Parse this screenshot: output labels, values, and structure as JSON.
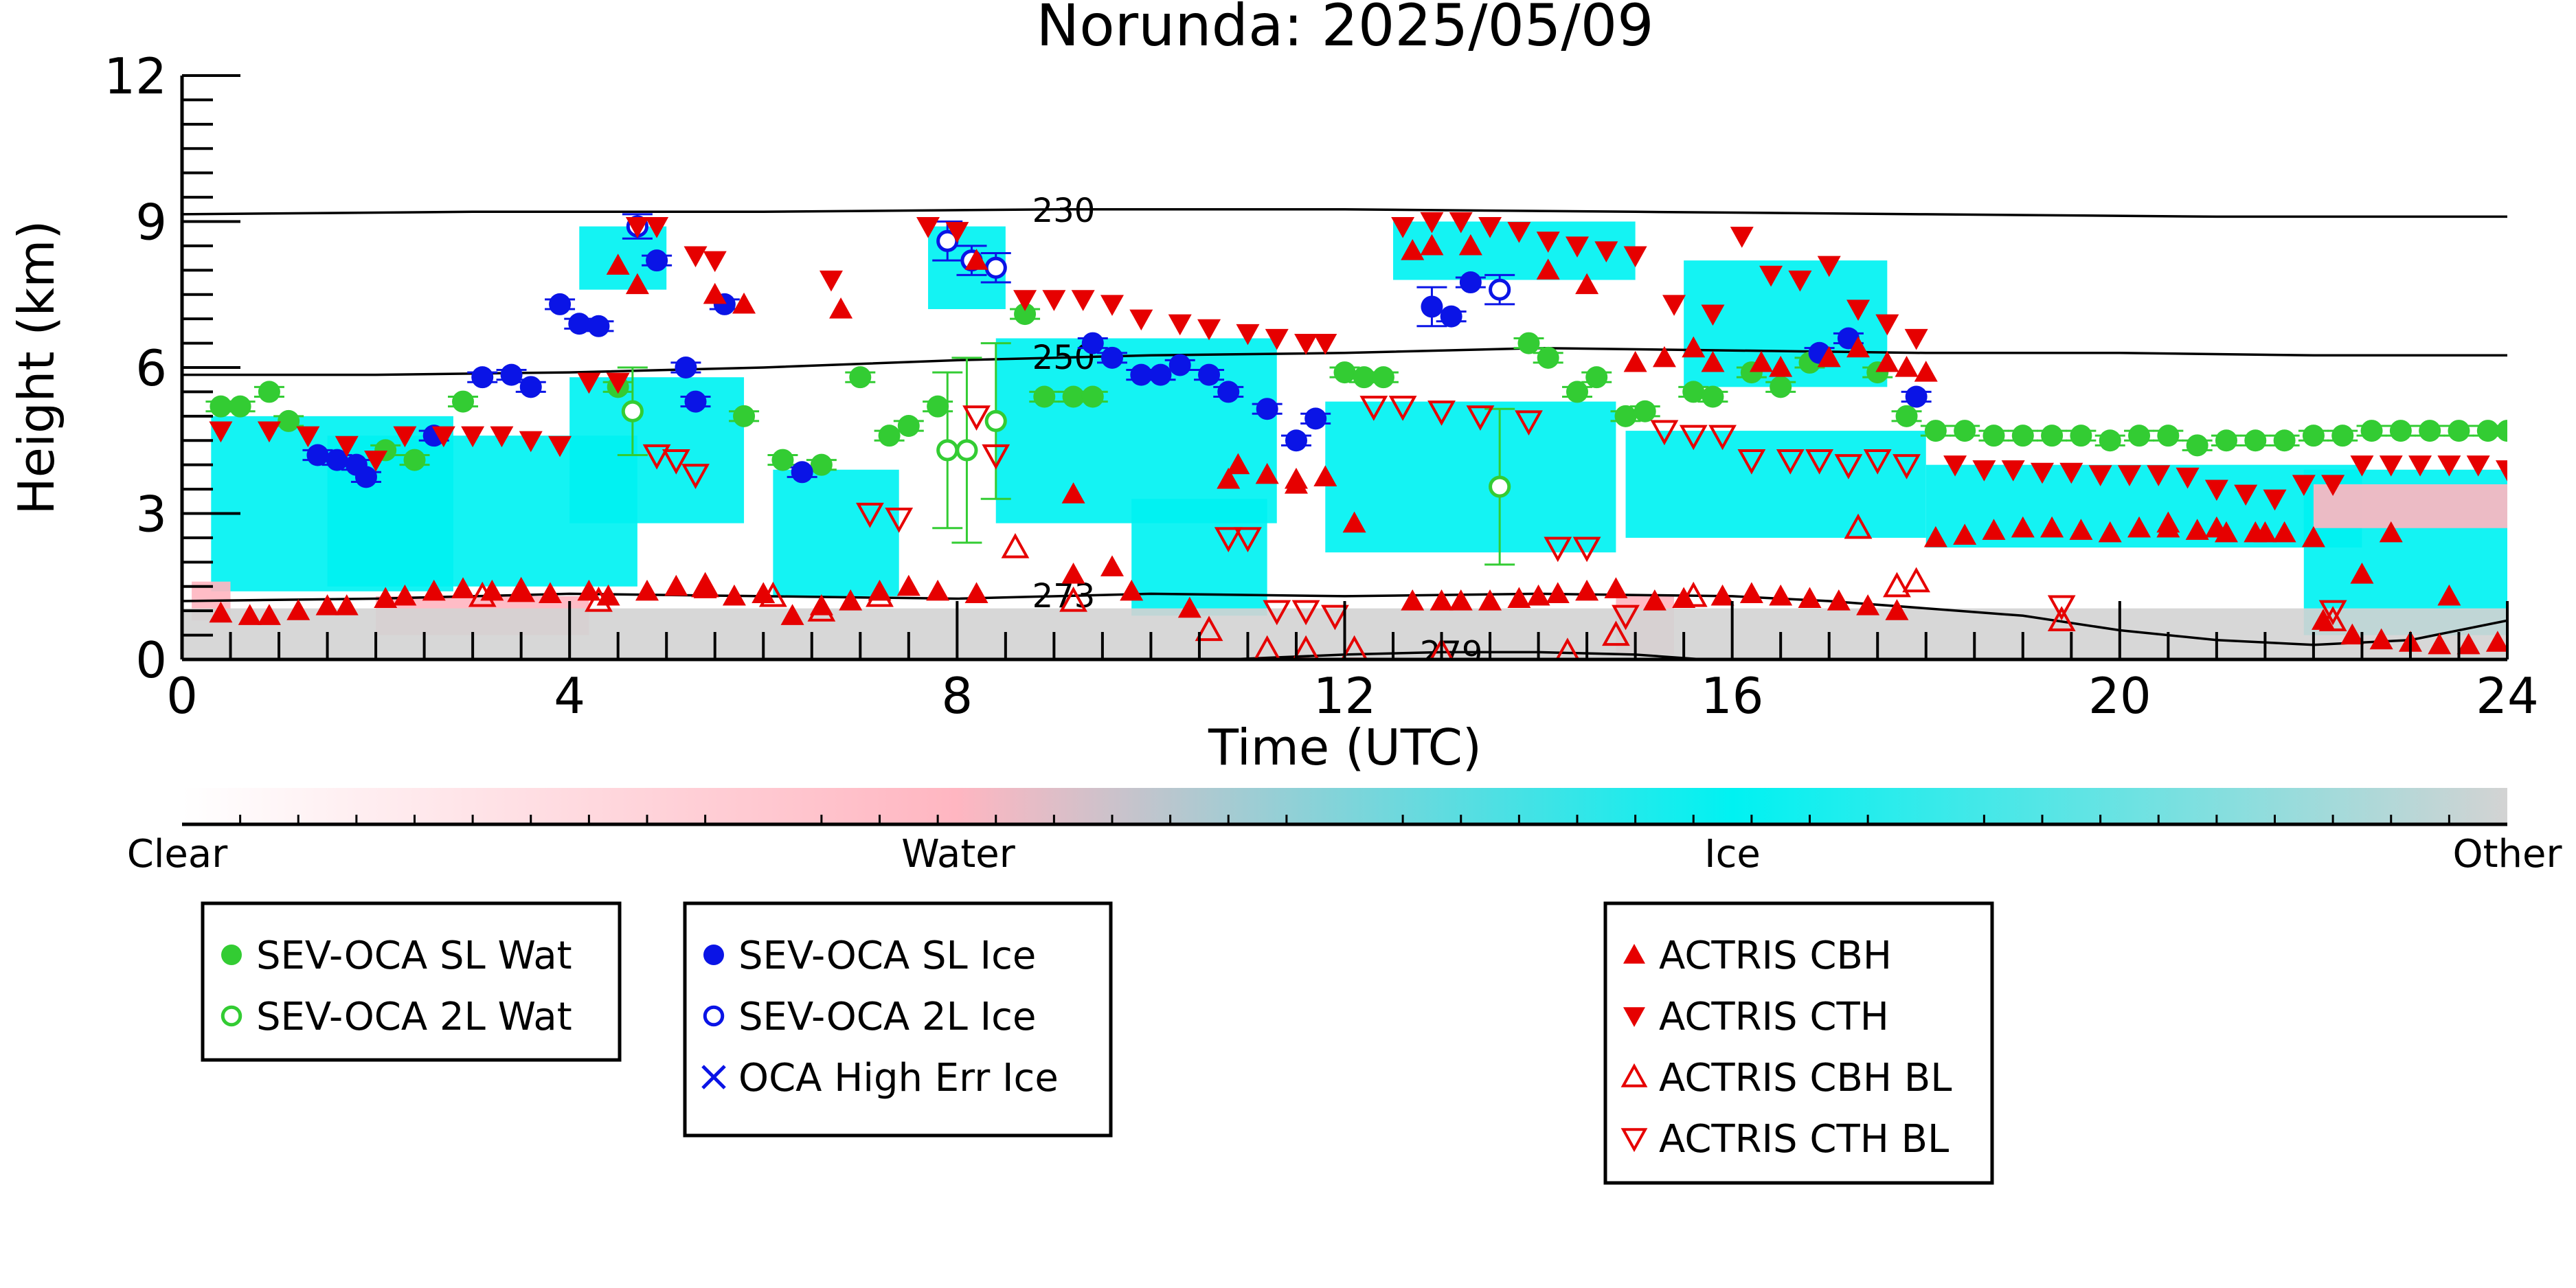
{
  "chart_data": {
    "type": "scatter",
    "title": "Norunda: 2025/05/09",
    "xlabel": "Time (UTC)",
    "ylabel": "Height (km)",
    "xlim": [
      0,
      24
    ],
    "ylim": [
      0,
      12
    ],
    "xticks": [
      0,
      4,
      8,
      12,
      16,
      20,
      24
    ],
    "yticks": [
      0,
      3,
      6,
      9,
      12
    ],
    "grid": false,
    "colors": {
      "water_green": "#33cc33",
      "ice_blue": "#0a14e6",
      "actris_red": "#e60000",
      "ice_cyan": "#00f2f2",
      "water_pink": "#ffb6c1",
      "other_gray": "#d3d3d3"
    },
    "colorbar": {
      "labels": [
        "Clear",
        "Water",
        "Ice",
        "Other"
      ],
      "stops": [
        "#ffffff",
        "#ffb6c1",
        "#00f2f2",
        "#d3d3d3"
      ]
    },
    "isotherms": [
      {
        "label": "230",
        "x": [
          0,
          3,
          6,
          9,
          12,
          15,
          18,
          21,
          24
        ],
        "y": [
          9.15,
          9.2,
          9.2,
          9.25,
          9.25,
          9.2,
          9.15,
          9.1,
          9.1
        ]
      },
      {
        "label": "250",
        "x": [
          0,
          2,
          4,
          6,
          8,
          10,
          12,
          14,
          16,
          18,
          20,
          22,
          24
        ],
        "y": [
          5.85,
          5.85,
          5.9,
          6.0,
          6.15,
          6.25,
          6.3,
          6.4,
          6.35,
          6.3,
          6.3,
          6.25,
          6.25
        ]
      },
      {
        "label": "273",
        "x": [
          0,
          2,
          4,
          6,
          8,
          10,
          12,
          14,
          16,
          17,
          18,
          19,
          20,
          21,
          22,
          23,
          24
        ],
        "y": [
          1.2,
          1.25,
          1.35,
          1.3,
          1.25,
          1.35,
          1.3,
          1.35,
          1.3,
          1.2,
          1.05,
          0.9,
          0.6,
          0.4,
          0.3,
          0.4,
          0.8
        ]
      },
      {
        "label": "279",
        "x": [
          10.8,
          12.0,
          13.0,
          14.0,
          15.0,
          15.7
        ],
        "y": [
          0.0,
          0.1,
          0.15,
          0.15,
          0.1,
          0.0
        ]
      }
    ],
    "regions": [
      {
        "kind": "ice",
        "x0": 0.3,
        "x1": 2.8,
        "y0": 1.4,
        "y1": 5.0
      },
      {
        "kind": "ice",
        "x0": 1.5,
        "x1": 4.7,
        "y0": 1.5,
        "y1": 4.6
      },
      {
        "kind": "ice",
        "x0": 4.0,
        "x1": 5.8,
        "y0": 2.8,
        "y1": 5.8
      },
      {
        "kind": "ice",
        "x0": 4.1,
        "x1": 5.0,
        "y0": 7.6,
        "y1": 8.9
      },
      {
        "kind": "ice",
        "x0": 6.1,
        "x1": 7.4,
        "y0": 1.3,
        "y1": 3.9
      },
      {
        "kind": "ice",
        "x0": 7.7,
        "x1": 8.5,
        "y0": 7.2,
        "y1": 8.9
      },
      {
        "kind": "ice",
        "x0": 8.4,
        "x1": 11.3,
        "y0": 2.8,
        "y1": 6.6
      },
      {
        "kind": "ice",
        "x0": 9.8,
        "x1": 11.2,
        "y0": 0.9,
        "y1": 3.3
      },
      {
        "kind": "ice",
        "x0": 11.8,
        "x1": 14.8,
        "y0": 2.2,
        "y1": 5.3
      },
      {
        "kind": "ice",
        "x0": 12.5,
        "x1": 15.0,
        "y0": 7.8,
        "y1": 9.0
      },
      {
        "kind": "ice",
        "x0": 14.9,
        "x1": 18.0,
        "y0": 2.5,
        "y1": 4.7
      },
      {
        "kind": "ice",
        "x0": 15.5,
        "x1": 17.6,
        "y0": 5.6,
        "y1": 8.2
      },
      {
        "kind": "ice",
        "x0": 18.0,
        "x1": 22.5,
        "y0": 2.3,
        "y1": 4.0
      },
      {
        "kind": "ice",
        "x0": 21.9,
        "x1": 24.0,
        "y0": 0.5,
        "y1": 3.9
      },
      {
        "kind": "water",
        "x0": 0.1,
        "x1": 0.5,
        "y0": 0.8,
        "y1": 1.6
      },
      {
        "kind": "water",
        "x0": 2.0,
        "x1": 4.2,
        "y0": 0.5,
        "y1": 1.3
      },
      {
        "kind": "water",
        "x0": 14.8,
        "x1": 15.4,
        "y0": 0.1,
        "y1": 1.3
      },
      {
        "kind": "water",
        "x0": 22.0,
        "x1": 24.0,
        "y0": 2.7,
        "y1": 3.6
      },
      {
        "kind": "other",
        "x0": 0.0,
        "x1": 24.0,
        "y0": 0.0,
        "y1": 1.05
      }
    ],
    "series": [
      {
        "name": "SEV-OCA SL Wat",
        "marker": "circle-filled",
        "color": "#33cc33",
        "x": [
          0.4,
          0.6,
          0.9,
          1.1,
          2.1,
          2.4,
          2.9,
          4.5,
          5.8,
          6.2,
          6.6,
          7.0,
          7.3,
          7.5,
          7.8,
          8.7,
          8.9,
          9.2,
          9.4,
          12.0,
          12.2,
          12.4,
          13.9,
          14.1,
          14.4,
          14.6,
          14.9,
          15.1,
          15.6,
          15.8,
          16.2,
          16.5,
          16.8,
          17.5,
          17.8,
          18.1,
          18.4,
          18.7,
          19.0,
          19.3,
          19.6,
          19.9,
          20.2,
          20.5,
          20.8,
          21.1,
          21.4,
          21.7,
          22.0,
          22.3,
          22.6,
          22.9,
          23.2,
          23.5,
          23.8,
          24.0
        ],
        "y": [
          5.2,
          5.2,
          5.5,
          4.9,
          4.3,
          4.1,
          5.3,
          5.6,
          5.0,
          4.1,
          4.0,
          5.8,
          4.6,
          4.8,
          5.2,
          7.1,
          5.4,
          5.4,
          5.4,
          5.9,
          5.8,
          5.8,
          6.5,
          6.2,
          5.5,
          5.8,
          5.0,
          5.1,
          5.5,
          5.4,
          5.9,
          5.6,
          6.1,
          5.9,
          5.0,
          4.7,
          4.7,
          4.6,
          4.6,
          4.6,
          4.6,
          4.5,
          4.6,
          4.6,
          4.4,
          4.5,
          4.5,
          4.5,
          4.6,
          4.6,
          4.7,
          4.7,
          4.7,
          4.7,
          4.7,
          4.7
        ],
        "yerr": [
          0.1,
          0.1,
          0.1,
          0.1,
          0.1,
          0.1,
          0.1,
          0.1,
          0.1,
          0.1,
          0.1,
          0.1,
          0.1,
          0.1,
          0.1,
          0.1,
          0.1,
          0.1,
          0.1,
          0.1,
          0.1,
          0.1,
          0.1,
          0.1,
          0.1,
          0.1,
          0.1,
          0.1,
          0.1,
          0.1,
          0.1,
          0.1,
          0.1,
          0.1,
          0.1,
          0.1,
          0.1,
          0.1,
          0.1,
          0.1,
          0.1,
          0.1,
          0.1,
          0.1,
          0.1,
          0.1,
          0.1,
          0.1,
          0.1,
          0.1,
          0.1,
          0.1,
          0.1,
          0.1,
          0.1,
          0.1
        ]
      },
      {
        "name": "SEV-OCA 2L Wat",
        "marker": "circle-open",
        "color": "#33cc33",
        "x": [
          4.65,
          7.9,
          8.1,
          8.4,
          13.6
        ],
        "y": [
          5.1,
          4.3,
          4.3,
          4.9,
          3.55
        ],
        "yerr": [
          0.9,
          1.6,
          1.9,
          1.6,
          1.6
        ]
      },
      {
        "name": "SEV-OCA SL Ice",
        "marker": "circle-filled",
        "color": "#0a14e6",
        "x": [
          1.4,
          1.6,
          1.8,
          1.9,
          2.6,
          3.1,
          3.4,
          3.6,
          3.9,
          4.1,
          4.3,
          4.9,
          5.2,
          5.3,
          5.6,
          6.4,
          9.4,
          9.6,
          9.9,
          10.1,
          10.3,
          10.6,
          10.8,
          11.2,
          11.5,
          11.7,
          12.9,
          13.1,
          13.3,
          16.9,
          17.2,
          17.9
        ],
        "y": [
          4.2,
          4.1,
          4.0,
          3.75,
          4.6,
          5.8,
          5.85,
          5.6,
          7.3,
          6.9,
          6.85,
          8.2,
          6.0,
          5.3,
          7.3,
          3.85,
          6.5,
          6.2,
          5.85,
          5.85,
          6.05,
          5.85,
          5.5,
          5.15,
          4.5,
          4.95,
          7.25,
          7.05,
          7.75,
          6.3,
          6.6,
          5.4
        ],
        "yerr": [
          0.1,
          0.1,
          0.1,
          0.1,
          0.1,
          0.1,
          0.1,
          0.1,
          0.1,
          0.1,
          0.1,
          0.1,
          0.1,
          0.1,
          0.1,
          0.1,
          0.1,
          0.1,
          0.1,
          0.1,
          0.1,
          0.1,
          0.1,
          0.1,
          0.1,
          0.1,
          0.4,
          0.1,
          0.1,
          0.1,
          0.1,
          0.1
        ]
      },
      {
        "name": "SEV-OCA 2L Ice",
        "marker": "circle-open",
        "color": "#0a14e6",
        "x": [
          4.7,
          7.9,
          8.15,
          8.4,
          13.6
        ],
        "y": [
          8.9,
          8.6,
          8.2,
          8.05,
          7.6
        ],
        "yerr": [
          0.25,
          0.4,
          0.3,
          0.3,
          0.3
        ]
      },
      {
        "name": "OCA High Err Ice",
        "marker": "x",
        "color": "#0a14e6",
        "x": [],
        "y": []
      },
      {
        "name": "ACTRIS CBH",
        "marker": "triangle-up-filled",
        "color": "#e60000",
        "x": [
          0.4,
          0.7,
          0.9,
          1.2,
          1.5,
          1.7,
          2.1,
          2.3,
          2.6,
          2.9,
          3.2,
          3.5,
          3.8,
          4.2,
          4.4,
          4.8,
          5.1,
          5.4,
          5.7,
          6.0,
          6.3,
          6.6,
          6.9,
          7.2,
          7.5,
          7.8,
          8.2,
          9.2,
          9.6,
          9.8,
          10.4,
          10.9,
          11.2,
          11.5,
          11.8,
          12.1,
          12.7,
          13.0,
          13.2,
          13.5,
          13.8,
          14.0,
          14.2,
          14.5,
          14.8,
          15.2,
          15.5,
          15.9,
          16.2,
          16.5,
          16.8,
          17.1,
          17.4,
          17.7,
          18.1,
          18.4,
          18.7,
          19.0,
          19.3,
          19.6,
          19.9,
          20.2,
          20.5,
          20.8,
          21.1,
          21.4,
          21.7,
          22.1,
          22.4,
          22.7,
          23.0,
          23.3,
          23.6,
          23.9,
          4.5,
          4.7,
          5.5,
          5.8,
          6.8,
          8.2,
          9.2,
          10.8,
          11.5,
          12.7,
          12.9,
          13.3,
          14.1,
          14.5,
          15.0,
          15.3,
          15.6,
          15.8,
          16.3,
          16.5,
          17.0,
          17.3,
          17.6,
          17.8,
          18.0,
          20.5,
          21.0,
          21.5,
          22.0,
          22.5,
          22.8,
          23.4
        ],
        "y": [
          0.95,
          0.9,
          0.9,
          1.0,
          1.1,
          1.1,
          1.25,
          1.3,
          1.4,
          1.45,
          1.4,
          1.4,
          1.35,
          1.4,
          1.3,
          1.4,
          1.5,
          1.45,
          1.3,
          1.35,
          0.9,
          1.1,
          1.2,
          1.4,
          1.5,
          1.4,
          1.35,
          1.75,
          1.9,
          1.4,
          1.05,
          4.0,
          3.8,
          3.7,
          3.75,
          2.8,
          1.2,
          1.2,
          1.2,
          1.2,
          1.25,
          1.3,
          1.35,
          1.4,
          1.45,
          1.2,
          1.25,
          1.3,
          1.35,
          1.3,
          1.25,
          1.2,
          1.1,
          1.0,
          2.5,
          2.55,
          2.65,
          2.7,
          2.7,
          2.65,
          2.6,
          2.7,
          2.7,
          2.65,
          2.6,
          2.6,
          2.6,
          0.8,
          0.5,
          0.4,
          0.35,
          0.3,
          0.3,
          0.35,
          8.1,
          7.7,
          7.5,
          7.3,
          7.2,
          8.2,
          3.4,
          3.7,
          3.6,
          8.4,
          8.5,
          8.5,
          8.0,
          7.7,
          6.1,
          6.2,
          6.4,
          6.1,
          6.1,
          6.0,
          6.2,
          6.4,
          6.1,
          6.0,
          5.9,
          2.8,
          2.7,
          2.6,
          2.5,
          1.75,
          2.6,
          1.3
        ]
      },
      {
        "name": "ACTRIS CTH",
        "marker": "triangle-down-filled",
        "color": "#e60000",
        "x": [
          0.4,
          0.9,
          1.3,
          1.7,
          2.0,
          2.3,
          2.7,
          3.0,
          3.3,
          3.6,
          3.9,
          4.2,
          4.5,
          4.7,
          4.9,
          5.3,
          5.5,
          6.7,
          7.7,
          8.0,
          8.7,
          9.0,
          9.3,
          9.6,
          9.9,
          10.3,
          10.6,
          11.0,
          11.3,
          11.6,
          11.8,
          12.6,
          12.9,
          13.2,
          13.5,
          13.8,
          14.1,
          14.4,
          14.7,
          15.0,
          15.4,
          15.8,
          16.1,
          16.4,
          16.7,
          17.0,
          17.3,
          17.6,
          17.9,
          18.3,
          18.6,
          18.9,
          19.2,
          19.5,
          19.8,
          20.1,
          20.4,
          20.7,
          21.0,
          21.3,
          21.6,
          21.9,
          22.2,
          22.5,
          22.8,
          23.1,
          23.4,
          23.7,
          24.0
        ],
        "y": [
          4.7,
          4.7,
          4.6,
          4.4,
          4.1,
          4.6,
          4.6,
          4.6,
          4.6,
          4.5,
          4.4,
          5.7,
          5.7,
          8.9,
          8.9,
          8.3,
          8.2,
          7.8,
          8.9,
          8.8,
          7.4,
          7.4,
          7.4,
          7.3,
          7.0,
          6.9,
          6.8,
          6.7,
          6.6,
          6.5,
          6.5,
          8.9,
          9.0,
          9.0,
          8.9,
          8.8,
          8.6,
          8.5,
          8.4,
          8.3,
          7.3,
          7.1,
          8.7,
          7.9,
          7.8,
          8.1,
          7.2,
          6.9,
          6.6,
          4.0,
          3.9,
          3.9,
          3.85,
          3.85,
          3.8,
          3.8,
          3.8,
          3.75,
          3.5,
          3.4,
          3.3,
          3.6,
          3.6,
          4.0,
          4.0,
          4.0,
          4.0,
          4.0,
          3.9
        ]
      },
      {
        "name": "ACTRIS CBH BL",
        "marker": "triangle-up-open",
        "color": "#e60000",
        "x": [
          3.1,
          3.5,
          4.3,
          5.4,
          6.1,
          6.6,
          7.2,
          8.6,
          9.2,
          10.6,
          11.2,
          11.6,
          12.1,
          13.0,
          14.3,
          14.8,
          15.6,
          17.3,
          17.7,
          17.9,
          19.4,
          22.2
        ],
        "y": [
          1.3,
          1.4,
          1.2,
          1.5,
          1.3,
          1.0,
          1.3,
          2.3,
          1.2,
          0.6,
          0.2,
          0.2,
          0.2,
          0.15,
          0.15,
          0.5,
          1.3,
          2.7,
          1.5,
          1.6,
          0.8,
          0.8
        ]
      },
      {
        "name": "ACTRIS CTH BL",
        "marker": "triangle-down-open",
        "color": "#e60000",
        "x": [
          4.9,
          5.1,
          5.3,
          7.1,
          7.4,
          8.2,
          8.4,
          10.8,
          11.0,
          11.3,
          11.6,
          11.9,
          12.3,
          12.6,
          13.0,
          13.4,
          13.9,
          14.2,
          14.5,
          14.9,
          15.3,
          15.6,
          15.9,
          16.2,
          16.6,
          16.9,
          17.2,
          17.5,
          17.8,
          19.4,
          22.2
        ],
        "y": [
          4.2,
          4.1,
          3.8,
          3.0,
          2.9,
          5.0,
          4.2,
          2.5,
          2.5,
          1.0,
          1.0,
          0.9,
          5.2,
          5.2,
          5.1,
          5.0,
          4.9,
          2.3,
          2.3,
          0.9,
          4.7,
          4.6,
          4.6,
          4.1,
          4.1,
          4.1,
          4.0,
          4.1,
          4.0,
          1.1,
          1.0
        ]
      }
    ],
    "legend": {
      "placement": "below",
      "groups": [
        [
          "SEV-OCA SL Wat",
          "SEV-OCA 2L Wat"
        ],
        [
          "SEV-OCA SL Ice",
          "SEV-OCA 2L Ice",
          "OCA High Err Ice"
        ],
        [
          "ACTRIS CBH",
          "ACTRIS CTH",
          "ACTRIS CBH BL",
          "ACTRIS CTH BL"
        ]
      ]
    }
  }
}
